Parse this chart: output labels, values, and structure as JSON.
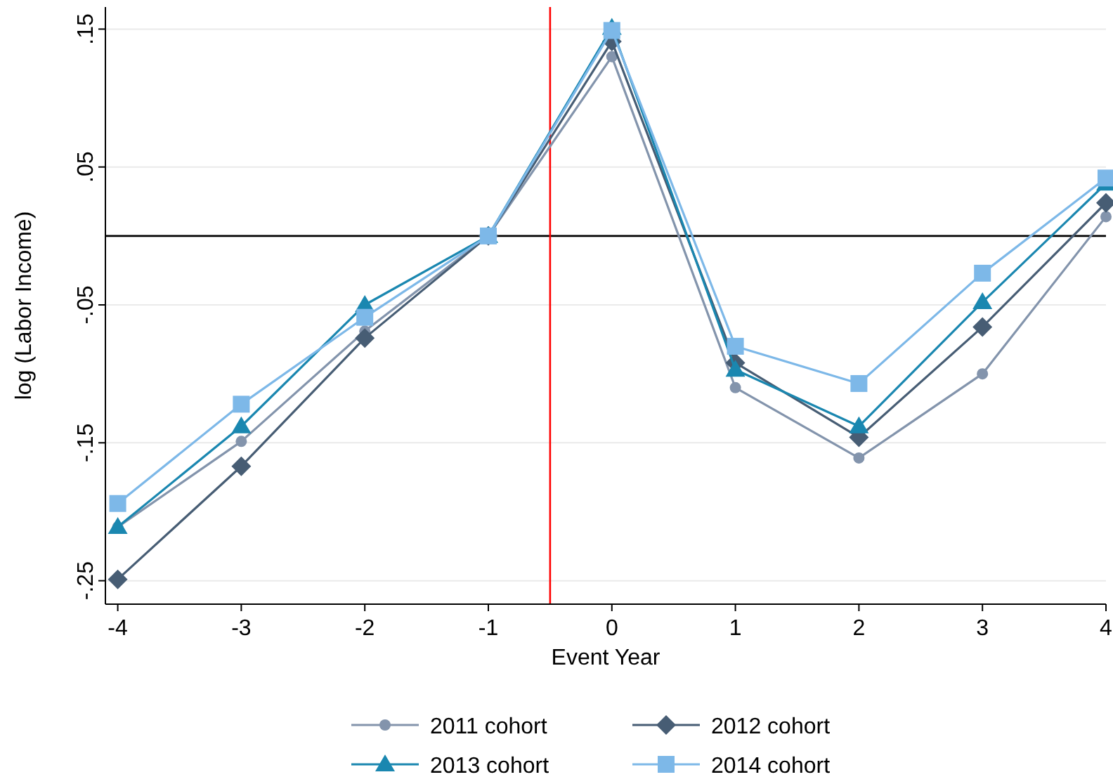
{
  "chart_data": {
    "type": "line",
    "xlabel": "Event Year",
    "ylabel": "log (Labor Income)",
    "x": [
      -4,
      -3,
      -2,
      -1,
      0,
      1,
      2,
      3,
      4
    ],
    "series": [
      {
        "name": "2011 cohort",
        "color": "#8394ac",
        "marker": "circle",
        "values": [
          -0.211,
          -0.149,
          -0.069,
          0,
          0.13,
          -0.11,
          -0.161,
          -0.1,
          0.014
        ]
      },
      {
        "name": "2012 cohort",
        "color": "#475d74",
        "marker": "diamond",
        "values": [
          -0.249,
          -0.167,
          -0.074,
          0,
          0.141,
          -0.092,
          -0.146,
          -0.066,
          0.024
        ]
      },
      {
        "name": "2013 cohort",
        "color": "#1a87b0",
        "marker": "triangle",
        "values": [
          -0.211,
          -0.138,
          -0.05,
          0,
          0.151,
          -0.097,
          -0.138,
          -0.048,
          0.038
        ]
      },
      {
        "name": "2014 cohort",
        "color": "#7db8e8",
        "marker": "square",
        "values": [
          -0.194,
          -0.122,
          -0.059,
          0,
          0.149,
          -0.08,
          -0.107,
          -0.027,
          0.042
        ]
      }
    ],
    "xlim": [
      -4.1,
      4
    ],
    "xticks": [
      -4,
      -3,
      -2,
      -1,
      0,
      1,
      2,
      3,
      4
    ],
    "ylim": [
      -0.267,
      0.166
    ],
    "yticks": [
      {
        "value": 0.15,
        "label": ".15"
      },
      {
        "value": 0.05,
        "label": ".05"
      },
      {
        "value": -0.05,
        "label": "-.05"
      },
      {
        "value": -0.15,
        "label": "-.15"
      },
      {
        "value": -0.25,
        "label": "-.25"
      }
    ],
    "grid": "y",
    "legend": "bottom",
    "ref_lines": [
      {
        "axis": "y",
        "value": 0,
        "color": "#000000"
      },
      {
        "axis": "x",
        "value": -0.5,
        "color": "#ff0000"
      }
    ]
  }
}
